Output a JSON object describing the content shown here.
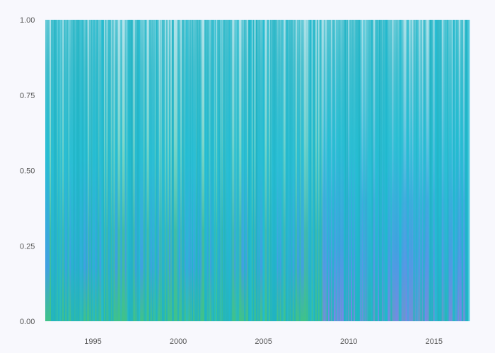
{
  "chart_data": {
    "type": "area",
    "title": "",
    "xlabel": "",
    "ylabel": "",
    "xlim": [
      1992.2,
      2017.0
    ],
    "ylim": [
      0,
      1
    ],
    "x_ticks": [
      {
        "value": 1995,
        "label": "1995"
      },
      {
        "value": 2000,
        "label": "2000"
      },
      {
        "value": 2005,
        "label": "2005"
      },
      {
        "value": 2010,
        "label": "2010"
      },
      {
        "value": 2015,
        "label": "2015"
      }
    ],
    "y_ticks": [
      {
        "value": 0,
        "label": "0.00"
      },
      {
        "value": 0.25,
        "label": "0.25"
      },
      {
        "value": 0.5,
        "label": "0.50"
      },
      {
        "value": 0.75,
        "label": "0.75"
      },
      {
        "value": 1.0,
        "label": "1.00"
      }
    ],
    "grid": false,
    "legend": "none",
    "background": "#f8f8fd",
    "colors": {
      "purple": "#7b84ee",
      "blue": "#3fa0e0",
      "cyan": "#22bcd2",
      "teal": "#1fb3c4",
      "green": "#3fc28a",
      "lightgreen": "#a8e3bf"
    },
    "periods": [
      {
        "start": 1992.2,
        "end": 2008.4,
        "dominant": "green-blue"
      },
      {
        "start": 2008.4,
        "end": 2017.0,
        "dominant": "purple-cyan"
      }
    ]
  }
}
